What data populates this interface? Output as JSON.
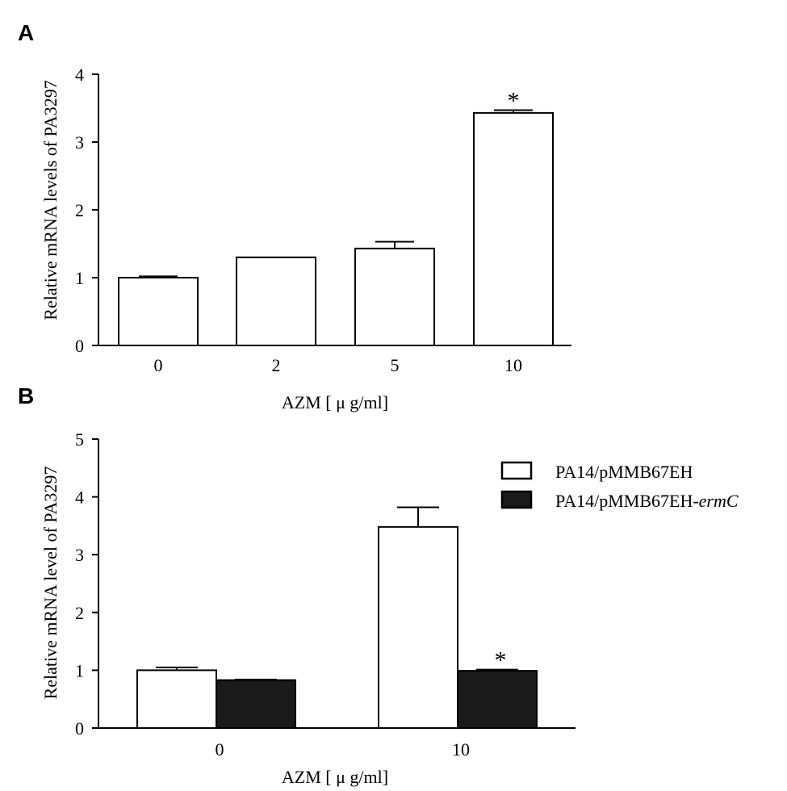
{
  "chart_data": [
    {
      "type": "bar",
      "panel": "A",
      "categories": [
        "0",
        "2",
        "5",
        "10"
      ],
      "values": [
        1.0,
        1.3,
        1.43,
        3.43
      ],
      "errors": [
        0.02,
        0.005,
        0.1,
        0.04
      ],
      "annotations": [
        "",
        "",
        "",
        "*"
      ],
      "ylabel": "Relative mRNA levels of PA3297",
      "xlabel": "AZM [ μ g/ml]",
      "ylim": [
        0,
        4
      ],
      "yticks": [
        0,
        1,
        2,
        3,
        4
      ],
      "colors": [
        "#ffffff"
      ]
    },
    {
      "type": "bar",
      "panel": "B",
      "categories": [
        "0",
        "10"
      ],
      "series": [
        {
          "name": "PA14/pMMB67EH",
          "name_italic": "",
          "values": [
            1.0,
            3.48
          ],
          "errors": [
            0.05,
            0.34
          ],
          "annotations": [
            "",
            ""
          ],
          "color": "#ffffff"
        },
        {
          "name": "PA14/pMMB67EH-",
          "name_italic": "ermC",
          "values": [
            0.83,
            0.99
          ],
          "errors": [
            0.01,
            0.02
          ],
          "annotations": [
            "",
            "*"
          ],
          "color": "#1a1a1a"
        }
      ],
      "ylabel": "Relative mRNA level of PA3297",
      "xlabel": "AZM [ μ g/ml]",
      "ylim": [
        0,
        5
      ],
      "yticks": [
        0,
        1,
        2,
        3,
        4,
        5
      ],
      "legend": "top-right"
    }
  ]
}
